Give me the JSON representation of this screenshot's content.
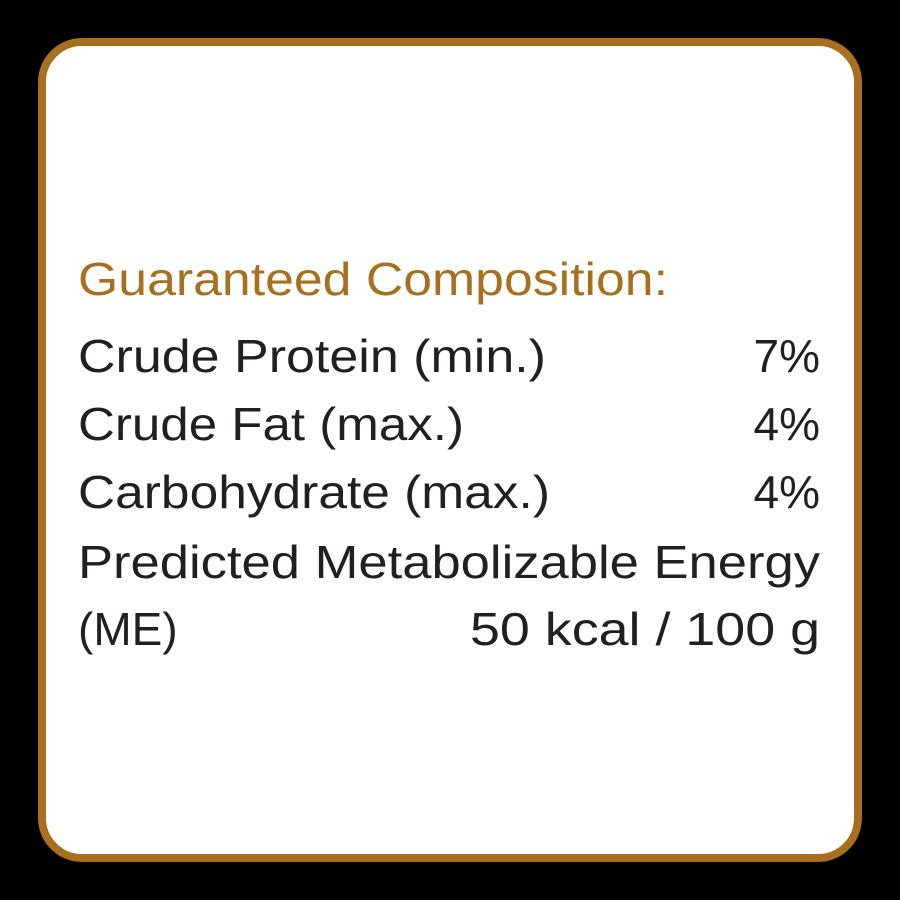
{
  "title": "Guaranteed Composition:",
  "rows": [
    {
      "label": "Crude Protein (min.)",
      "value": "7%"
    },
    {
      "label": "Crude Fat (max.)",
      "value": "4%"
    },
    {
      "label": "Carbohydrate (max.)",
      "value": "4%"
    }
  ],
  "energy": {
    "label": "Predicted Metabolizable Energy",
    "label_cont": "(ME)",
    "value": "50 kcal / 100 g"
  }
}
